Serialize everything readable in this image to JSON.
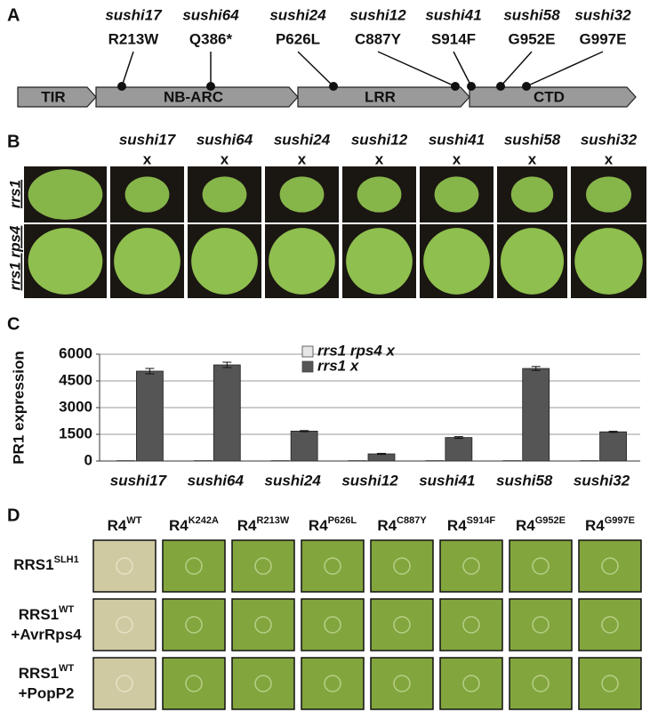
{
  "figure": {
    "panel_a": {
      "label": "A",
      "mutations": [
        {
          "allele": "sushi17",
          "change": "R213W"
        },
        {
          "allele": "sushi64",
          "change": "Q386*"
        },
        {
          "allele": "sushi24",
          "change": "P626L"
        },
        {
          "allele": "sushi12",
          "change": "C887Y"
        },
        {
          "allele": "sushi41",
          "change": "S914F"
        },
        {
          "allele": "sushi58",
          "change": "G952E"
        },
        {
          "allele": "sushi32",
          "change": "G997E"
        }
      ],
      "domains": [
        "TIR",
        "NB-ARC",
        "LRR",
        "CTD"
      ]
    },
    "panel_b": {
      "label": "B",
      "crosses": [
        "sushi17",
        "sushi64",
        "sushi24",
        "sushi12",
        "sushi41",
        "sushi58",
        "sushi32"
      ],
      "cross_symbol": "x",
      "rows": [
        "rrs1",
        "rrs1 rps4"
      ]
    },
    "panel_c": {
      "label": "C"
    },
    "panel_d": {
      "label": "D",
      "columns": [
        {
          "base": "R4",
          "sup": "WT"
        },
        {
          "base": "R4",
          "sup": "K242A"
        },
        {
          "base": "R4",
          "sup": "R213W"
        },
        {
          "base": "R4",
          "sup": "P626L"
        },
        {
          "base": "R4",
          "sup": "C887Y"
        },
        {
          "base": "R4",
          "sup": "S914F"
        },
        {
          "base": "R4",
          "sup": "G952E"
        },
        {
          "base": "R4",
          "sup": "G997E"
        }
      ],
      "rows": [
        {
          "base": "RRS1",
          "sup": "SLH1"
        },
        {
          "base": "RRS1",
          "sup": "WT",
          "extra": "+AvrRps4"
        },
        {
          "base": "RRS1",
          "sup": "WT",
          "extra": "+PopP2"
        }
      ]
    }
  },
  "chart_data": {
    "type": "bar",
    "ylabel": "PR1 expression",
    "categories": [
      "sushi17",
      "sushi64",
      "sushi24",
      "sushi12",
      "sushi41",
      "sushi58",
      "sushi32"
    ],
    "series": [
      {
        "name": "rrs1 rps4 x",
        "color": "#e6e6e6",
        "values": [
          20,
          20,
          20,
          20,
          20,
          20,
          20
        ]
      },
      {
        "name": "rrs1 x",
        "color": "#555555",
        "values": [
          5050,
          5400,
          1680,
          400,
          1320,
          5200,
          1640
        ],
        "errors": [
          150,
          150,
          30,
          30,
          50,
          110,
          30
        ]
      }
    ],
    "ylim": [
      0,
      6000
    ],
    "yticks": [
      0,
      1500,
      3000,
      4500,
      6000
    ],
    "grid": true
  }
}
